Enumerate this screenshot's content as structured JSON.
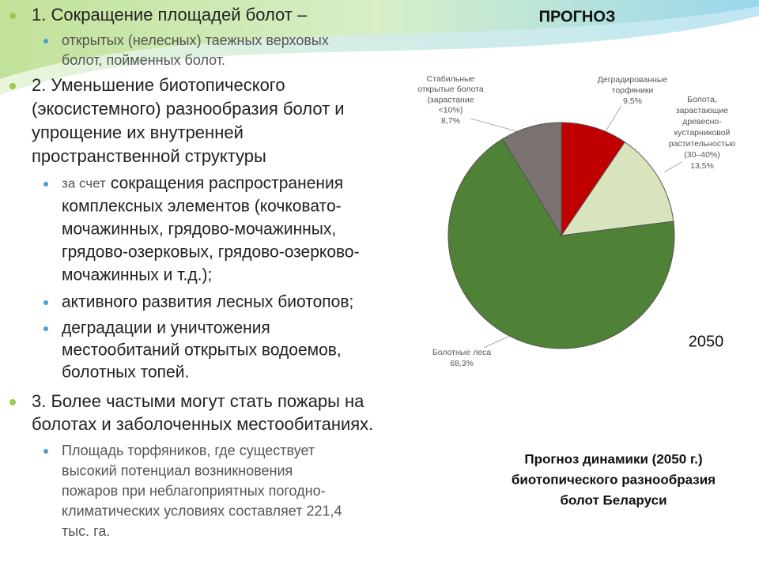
{
  "slide": {
    "title": "ПРОГНОЗ",
    "items": [
      {
        "level": 1,
        "lines": [
          "1. Сокращение площадей болот –"
        ]
      },
      {
        "level": 2,
        "lines": [
          "открытых (нелесных) таежных верховых",
          "болот, пойменных болот."
        ]
      },
      {
        "level": 1,
        "lines": [
          "2. Уменьшение биотопического",
          "(экосистемного) разнообразия болот и",
          "упрощение их внутренней",
          "пространственной структуры"
        ]
      },
      {
        "level": 2,
        "lead": "за счет",
        "lines": [
          "сокращения распространения",
          "комплексных элементов (кочковато-",
          "мочажинных, грядово-мочажинных,",
          "грядово-озерковых, грядово-озерково-",
          "мочажинных и т.д.);"
        ]
      },
      {
        "level": 2,
        "lines": [
          "активного развития лесных биотопов;"
        ]
      },
      {
        "level": 2,
        "lines": [
          "деградации и уничтожения",
          "местообитаний открытых водоемов,",
          "болотных топей."
        ]
      },
      {
        "level": 1,
        "lines": [
          "3. Более частыми могут стать пожары на",
          "болотах и заболоченных местообитаниях."
        ]
      },
      {
        "level": 2,
        "lines": [
          "Площадь торфяников, где существует",
          "высокий потенциал возникновения",
          "пожаров при неблагоприятных погодно-",
          "климатических условиях составляет 221,4",
          "тыс. га."
        ]
      }
    ],
    "caption": [
      "Прогноз  динамики (2050 г.)",
      "биотопического  разнообразия",
      "болот  Беларуси"
    ]
  },
  "chart_data": {
    "type": "pie",
    "categories": [
      [
        "Деградированные",
        "торфяники"
      ],
      [
        "Болота,",
        "зарастающие",
        "древесно-",
        "кустарниковой",
        "растительностью",
        "(30–40%)"
      ],
      [
        "Болотные леса"
      ],
      [
        "Стабильные",
        "открытые болота",
        "(зарастание",
        "<10%)"
      ]
    ],
    "values": [
      9.5,
      13.5,
      68.3,
      8.7
    ],
    "value_labels": [
      "9,5%",
      "13,5%",
      "68,3%",
      "8,7%"
    ],
    "colors": [
      "#c00000",
      "#d7e4bd",
      "#4f8136",
      "#7a7171"
    ],
    "annotation": "2050"
  }
}
